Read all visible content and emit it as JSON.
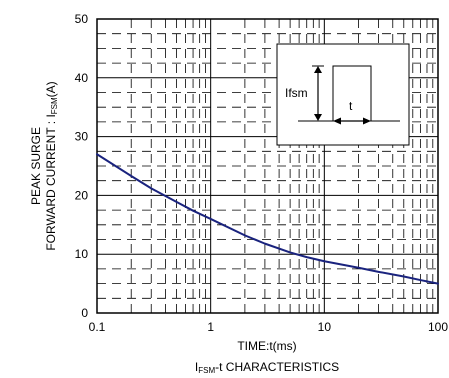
{
  "chart_data": {
    "type": "line",
    "title": "",
    "caption": {
      "prefix": "I",
      "sub": "FSM",
      "suffix": "-t CHARACTERISTICS"
    },
    "xlabel": "TIME:t(ms)",
    "ylabel_line1": "PEAK SURGE",
    "ylabel_line2": {
      "prefix": "FORWARD CURRENT : I",
      "sub": "FSM",
      "suffix": "(A)"
    },
    "x_scale": "log",
    "xlim": [
      0.1,
      100
    ],
    "ylim": [
      0,
      50
    ],
    "x_ticks": [
      0.1,
      1,
      10,
      100
    ],
    "x_tick_labels": [
      "0.1",
      "1",
      "10",
      "100"
    ],
    "y_ticks": [
      0,
      10,
      20,
      30,
      40,
      50
    ],
    "y_tick_labels": [
      "0",
      "10",
      "20",
      "30",
      "40",
      "50"
    ],
    "grid": true,
    "series": [
      {
        "color": "#1a237e",
        "x": [
          0.1,
          0.2,
          0.3,
          0.5,
          0.7,
          1,
          2,
          3,
          5,
          7,
          10,
          20,
          30,
          50,
          70,
          100
        ],
        "y": [
          27,
          23.3,
          21.2,
          18.9,
          17.4,
          16,
          13.2,
          11.8,
          10.3,
          9.5,
          8.8,
          7.7,
          7.0,
          6.2,
          5.6,
          5.0
        ]
      }
    ],
    "inset": {
      "label": "Ifsm",
      "t_label": "t"
    }
  }
}
